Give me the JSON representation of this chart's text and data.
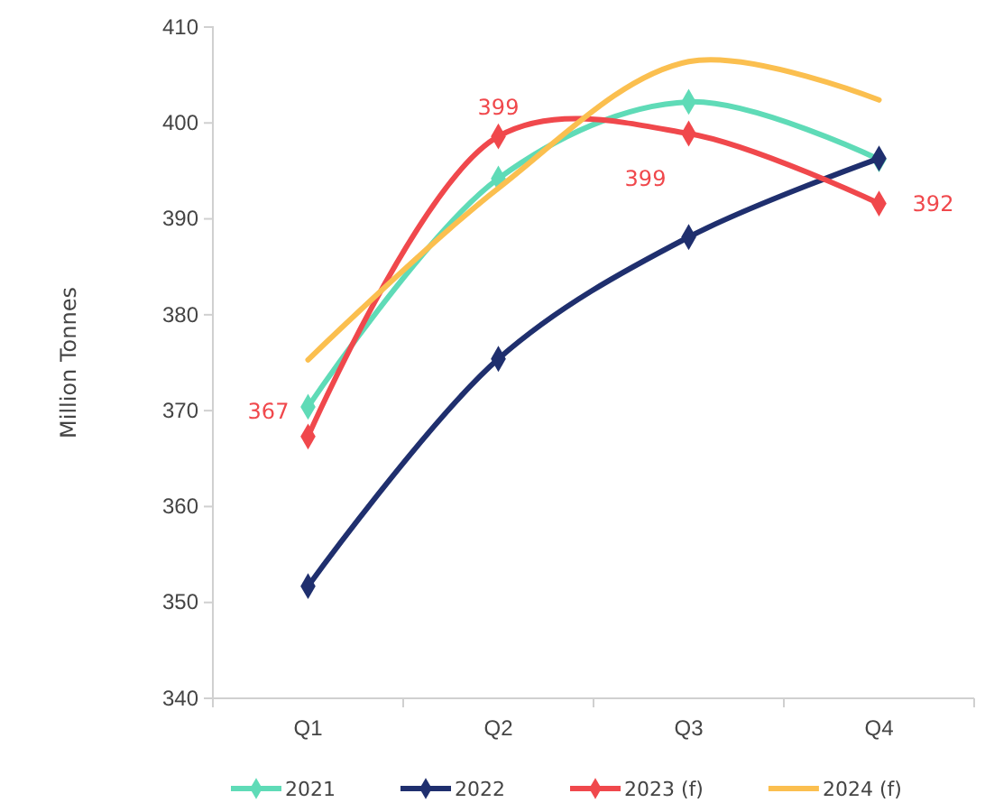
{
  "chart_data": {
    "type": "line",
    "ylabel": "Million Tonnes",
    "categories": [
      "Q1",
      "Q2",
      "Q3",
      "Q4"
    ],
    "ylim": [
      340,
      410
    ],
    "yticks": [
      340,
      350,
      360,
      370,
      380,
      390,
      400,
      410
    ],
    "grid": false,
    "legend": "bottom",
    "series": [
      {
        "name": "2021",
        "color": "#5fdbb7",
        "marker": "diamond",
        "values": [
          370.4,
          394.2,
          402.2,
          396.2
        ]
      },
      {
        "name": "2022",
        "color": "#1f2f6e",
        "marker": "diamond",
        "values": [
          351.7,
          375.4,
          388.1,
          396.3
        ]
      },
      {
        "name": "2023 (f)",
        "color": "#f0484c",
        "marker": "diamond",
        "values": [
          367.3,
          398.6,
          398.9,
          391.6
        ],
        "value_labels": [
          "367",
          "399",
          "399",
          "392"
        ]
      },
      {
        "name": "2024 (f)",
        "color": "#fbbf4f",
        "marker": "none",
        "values": [
          375.3,
          393.2,
          406.4,
          402.4
        ]
      }
    ]
  }
}
